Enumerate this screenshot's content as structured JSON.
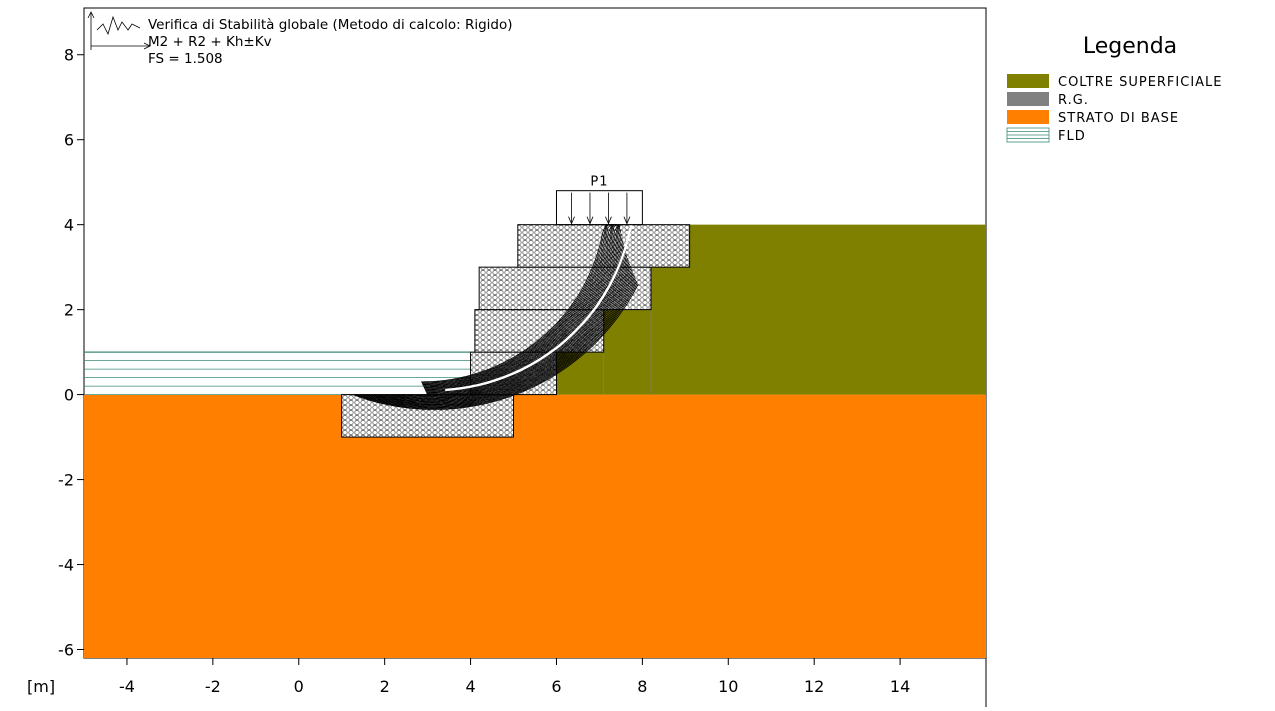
{
  "header": {
    "title": "Verifica di Stabilità globale (Metodo di calcolo: Rigido)",
    "combination": "M2 + R2 + Kh±Kv",
    "fs": "FS = 1.508"
  },
  "axis_unit": "[m]",
  "load_label": "P1",
  "legend": {
    "title": "Legenda",
    "items": [
      {
        "label": "COLTRE SUPERFICIALE",
        "color": "#808000"
      },
      {
        "label": "R.G.",
        "color": "#808080"
      },
      {
        "label": "STRATO DI BASE",
        "color": "#ff8000"
      },
      {
        "label": "FLD",
        "color": "#3a8a7a"
      }
    ]
  },
  "chart_data": {
    "type": "diagram",
    "x_ticks": [
      -4,
      -2,
      0,
      2,
      4,
      6,
      8,
      10,
      12,
      14
    ],
    "y_ticks": [
      8,
      6,
      4,
      2,
      0,
      -2,
      -4,
      -6
    ],
    "xlim": [
      -5,
      16
    ],
    "ylim": [
      -6.2,
      9.1
    ],
    "factor_of_safety": 1.508,
    "water_level": 1.0,
    "ground_left_level": 0.0,
    "ground_right_level": 4.0,
    "gabions": [
      {
        "x0": 1.0,
        "x1": 5.0,
        "y0": -1.0,
        "y1": 0.0
      },
      {
        "x0": 4.0,
        "x1": 6.0,
        "y0": 0.0,
        "y1": 1.0
      },
      {
        "x0": 4.1,
        "x1": 7.1,
        "y0": 1.0,
        "y1": 2.0
      },
      {
        "x0": 4.2,
        "x1": 8.2,
        "y0": 2.0,
        "y1": 3.0
      },
      {
        "x0": 5.1,
        "x1": 9.1,
        "y0": 3.0,
        "y1": 4.0
      }
    ],
    "load": {
      "x0": 6.0,
      "x1": 8.0,
      "y": 4.8
    },
    "critical_surface": {
      "cx": 3.0,
      "cy": 4.8,
      "r": 4.8
    }
  }
}
